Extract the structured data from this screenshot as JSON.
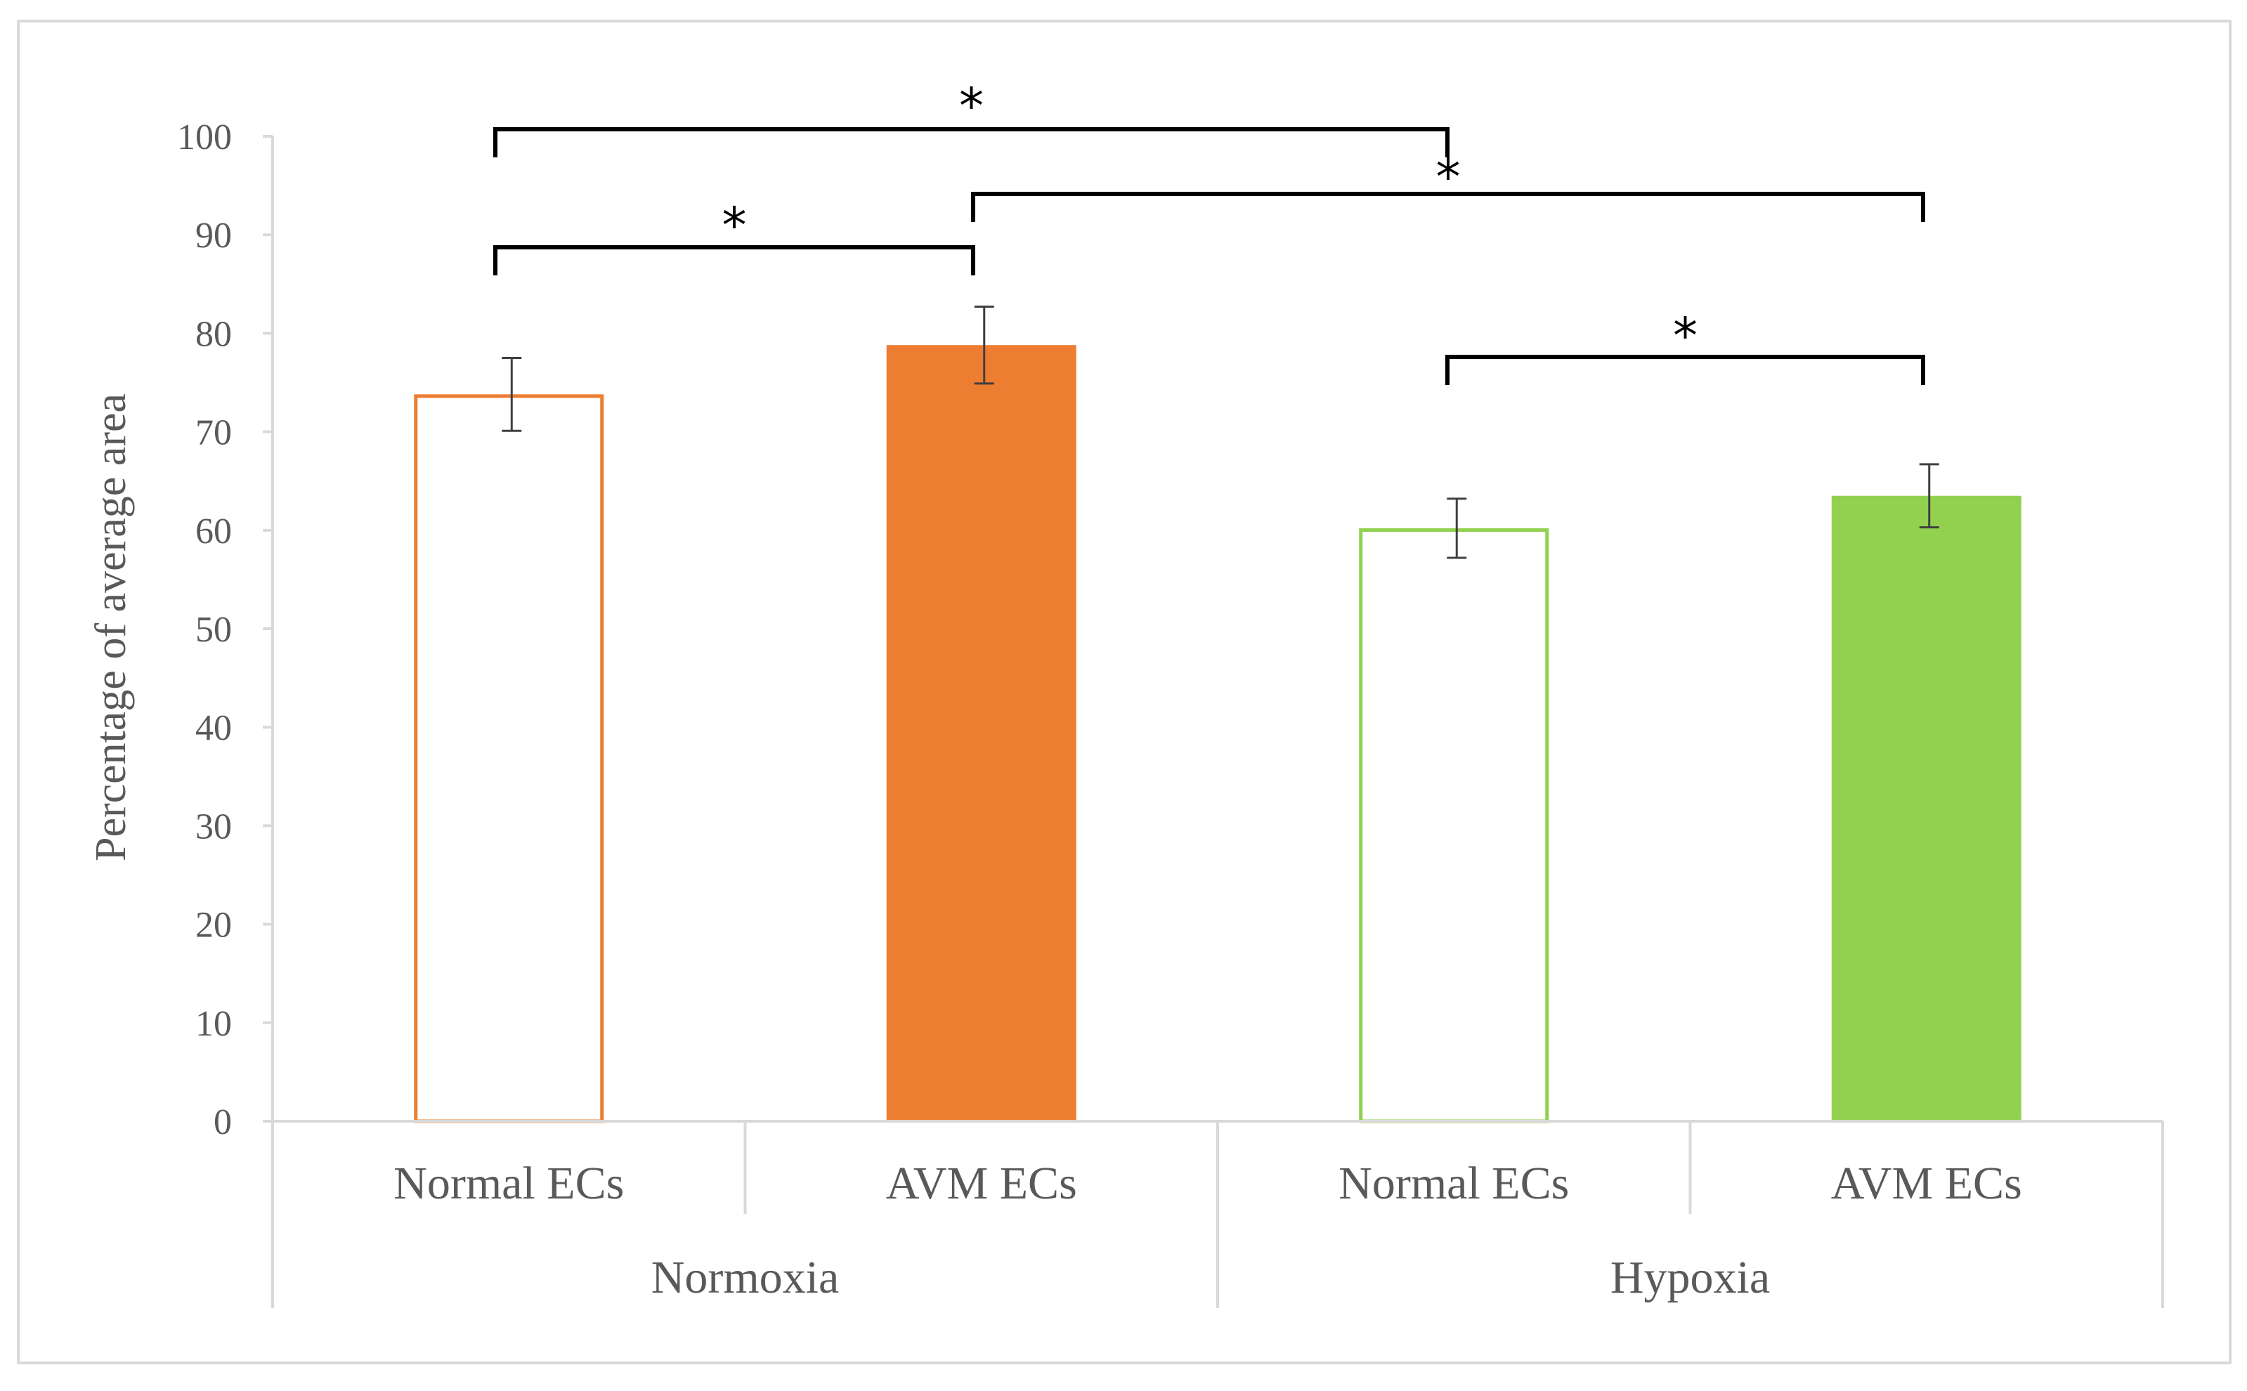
{
  "chart_data": {
    "type": "bar",
    "ylabel": "Percentage of average area",
    "xlabel": "",
    "ylim": [
      0,
      100
    ],
    "yticks": [
      0,
      10,
      20,
      30,
      40,
      50,
      60,
      70,
      80,
      90,
      100
    ],
    "groups": [
      {
        "label": "Normoxia",
        "bars": [
          {
            "category": "Normal ECs",
            "value": 73.8,
            "error": 3.7,
            "style": "outline",
            "color": "#ED7D31"
          },
          {
            "category": "AVM ECs",
            "value": 78.8,
            "error": 3.9,
            "style": "filled",
            "color": "#ED7D31"
          }
        ]
      },
      {
        "label": "Hypoxia",
        "bars": [
          {
            "category": "Normal ECs",
            "value": 60.2,
            "error": 3.0,
            "style": "outline",
            "color": "#92D050"
          },
          {
            "category": "AVM ECs",
            "value": 63.5,
            "error": 3.2,
            "style": "filled",
            "color": "#92D050"
          }
        ]
      }
    ],
    "significance": [
      {
        "from": 0,
        "to": 2,
        "label": "*"
      },
      {
        "from": 1,
        "to": 3,
        "label": "*"
      },
      {
        "from": 0,
        "to": 1,
        "label": "*"
      },
      {
        "from": 2,
        "to": 3,
        "label": "*"
      }
    ],
    "grid": false,
    "legend": "none",
    "colors": {
      "frame": "#d9d9d9",
      "axis": "#d9d9d9",
      "text": "#595959",
      "error_bar": "#404040",
      "bracket": "#000000"
    }
  }
}
